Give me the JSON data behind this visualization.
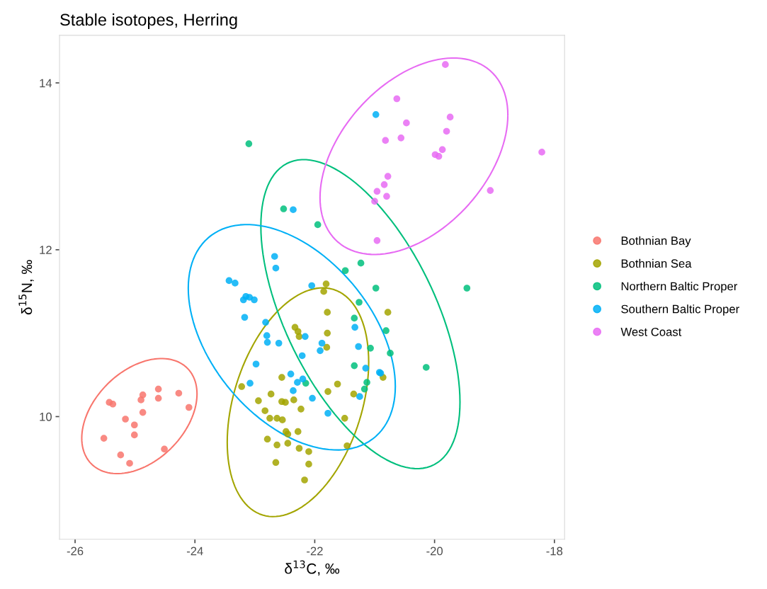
{
  "chart_data": {
    "type": "scatter",
    "title": "Stable isotopes, Herring",
    "xlabel": "δ$^{13}$C, ‰",
    "ylabel": "δ$^{15}$N, ‰",
    "xlim": [
      -26.26,
      -17.83
    ],
    "xticks": [
      -26,
      -24,
      -22,
      -20,
      -18
    ],
    "ylim": [
      8.53,
      14.57
    ],
    "yticks": [
      10,
      12,
      14
    ],
    "grid": false,
    "legend": "right",
    "marker": "circle",
    "series": [
      {
        "name": "Bothnian Bay",
        "color": "#F8766D",
        "x": [
          -25.43,
          -25.37,
          -24.87,
          -24.9,
          -24.61,
          -24.61,
          -24.27,
          -24.1,
          -24.87,
          -25.16,
          -25.01,
          -25.01,
          -25.52,
          -24.51,
          -25.24,
          -25.09
        ],
        "values": [
          10.17,
          10.15,
          10.26,
          10.2,
          10.33,
          10.22,
          10.28,
          10.11,
          10.05,
          9.97,
          9.9,
          9.78,
          9.74,
          9.61,
          9.54,
          9.44
        ]
      },
      {
        "name": "Bothnian Sea",
        "color": "#A3A500",
        "x": [
          -22.33,
          -22.28,
          -22.26,
          -22.55,
          -23.22,
          -22.73,
          -22.94,
          -22.55,
          -22.49,
          -22.35,
          -22.23,
          -22.83,
          -22.75,
          -22.63,
          -22.54,
          -22.48,
          -22.45,
          -22.28,
          -22.79,
          -22.63,
          -22.45,
          -22.26,
          -22.1,
          -22.65,
          -22.1,
          -22.17,
          -21.81,
          -21.85,
          -21.79,
          -21.79,
          -21.8,
          -20.78,
          -20.86,
          -21.62,
          -21.78,
          -21.35,
          -21.5,
          -21.46
        ],
        "values": [
          11.07,
          11.02,
          10.96,
          10.47,
          10.36,
          10.27,
          10.19,
          10.18,
          10.17,
          10.2,
          10.09,
          10.07,
          9.98,
          9.98,
          9.96,
          9.82,
          9.79,
          9.82,
          9.73,
          9.66,
          9.68,
          9.62,
          9.58,
          9.45,
          9.43,
          9.24,
          11.59,
          11.5,
          11.25,
          11.0,
          10.83,
          11.25,
          10.47,
          10.39,
          10.3,
          10.27,
          9.98,
          9.65
        ]
      },
      {
        "name": "Northern Baltic Proper",
        "color": "#00BF7D",
        "x": [
          -23.1,
          -22.52,
          -21.95,
          -21.23,
          -21.49,
          -20.98,
          -19.46,
          -21.26,
          -21.34,
          -20.81,
          -21.07,
          -20.74,
          -21.34,
          -20.14,
          -21.13,
          -21.17,
          -22.15
        ],
        "values": [
          13.27,
          12.49,
          12.3,
          11.84,
          11.75,
          11.54,
          11.54,
          11.37,
          11.18,
          11.03,
          10.82,
          10.76,
          10.61,
          10.59,
          10.41,
          10.33,
          10.4
        ]
      },
      {
        "name": "Southern Baltic Proper",
        "color": "#00B0F6",
        "x": [
          -23.43,
          -23.33,
          -23.19,
          -23.15,
          -23.09,
          -23.01,
          -23.17,
          -22.82,
          -22.8,
          -22.79,
          -22.6,
          -22.98,
          -23.08,
          -22.4,
          -22.29,
          -22.2,
          -22.36,
          -22.21,
          -22.16,
          -22.67,
          -22.65,
          -22.36,
          -20.98,
          -22.05,
          -21.88,
          -21.91,
          -21.33,
          -21.27,
          -21.15,
          -20.92,
          -20.9,
          -22.04,
          -21.78,
          -21.25
        ],
        "values": [
          11.63,
          11.6,
          11.4,
          11.44,
          11.43,
          11.4,
          11.19,
          11.13,
          10.97,
          10.89,
          10.88,
          10.63,
          10.4,
          10.51,
          10.41,
          10.45,
          10.31,
          10.73,
          10.96,
          11.92,
          11.78,
          12.48,
          13.62,
          11.57,
          10.88,
          10.79,
          11.07,
          10.84,
          10.58,
          10.53,
          10.52,
          10.22,
          10.04,
          10.24
        ]
      },
      {
        "name": "West Coast",
        "color": "#E76BF3",
        "x": [
          -19.82,
          -20.63,
          -19.74,
          -20.47,
          -19.8,
          -20.82,
          -20.56,
          -19.87,
          -19.99,
          -19.93,
          -18.21,
          -20.78,
          -20.84,
          -20.96,
          -20.8,
          -21.0,
          -19.07,
          -20.96
        ],
        "values": [
          14.22,
          13.81,
          13.59,
          13.52,
          13.42,
          13.31,
          13.34,
          13.2,
          13.14,
          13.12,
          13.17,
          12.88,
          12.78,
          12.7,
          12.64,
          12.58,
          12.71,
          12.11
        ]
      }
    ]
  }
}
